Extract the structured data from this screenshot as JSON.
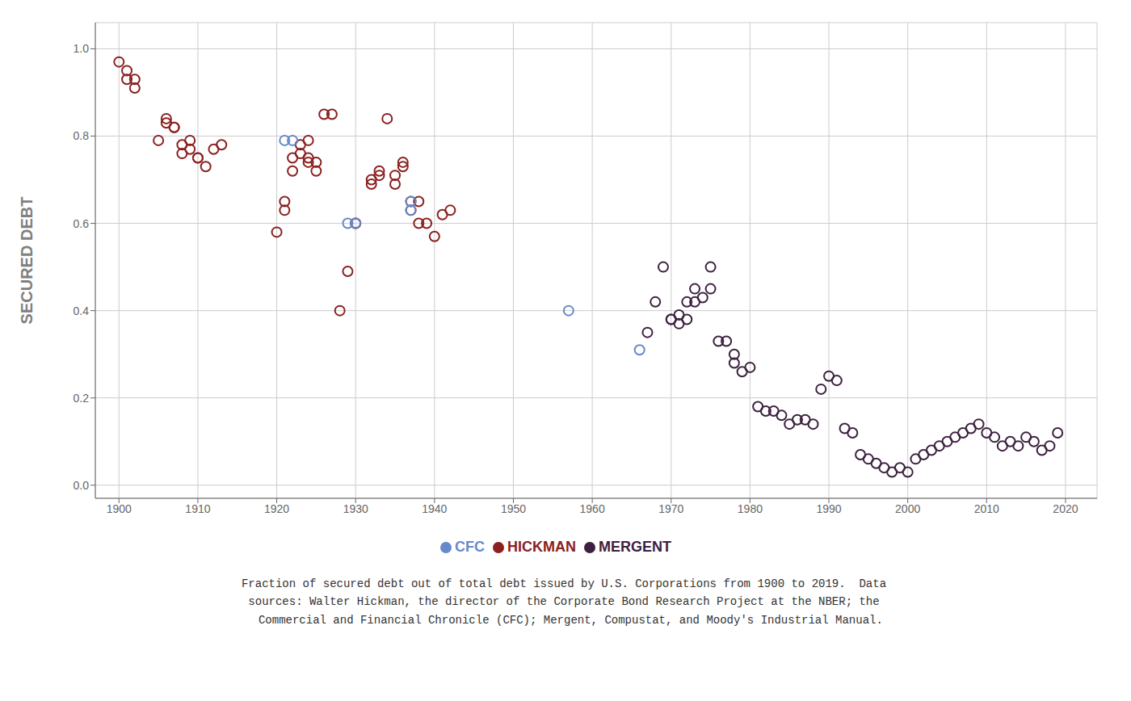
{
  "chart_data": {
    "type": "scatter",
    "ylabel": "SECURED DEBT",
    "annotations": [
      "Fraction of secured debt out of total debt issued by U.S. Corporations from 1900 to 2019.  Data\nsources: Walter Hickman, the director of the Corporate Bond Research Project at the NBER; the\n  Commercial and Financial Chronicle (CFC); Mergent, Compustat, and Moody's Industrial Manual."
    ],
    "xlim": [
      1897,
      2024
    ],
    "xticks": [
      1900,
      1910,
      1920,
      1930,
      1940,
      1950,
      1960,
      1970,
      1980,
      1990,
      2000,
      2010,
      2020
    ],
    "ylim": [
      -0.03,
      1.06
    ],
    "yticks": [
      {
        "value": 0,
        "label": "0.0"
      },
      0.2,
      0.4,
      0.6,
      0.8,
      {
        "value": 1,
        "label": "1.0"
      }
    ],
    "grid": true,
    "legend": "bottom",
    "marker": "circle",
    "series": [
      {
        "name": "HICKMAN",
        "color": "#8b2020",
        "x": [
          1900,
          1901,
          1901,
          1902,
          1902,
          1905,
          1906,
          1906,
          1907,
          1907,
          1908,
          1908,
          1909,
          1909,
          1910,
          1910,
          1911,
          1912,
          1913,
          1920,
          1921,
          1921,
          1922,
          1922,
          1923,
          1923,
          1924,
          1924,
          1924,
          1925,
          1925,
          1926,
          1927,
          1928,
          1929,
          1930,
          1930,
          1932,
          1932,
          1933,
          1933,
          1934,
          1935,
          1935,
          1936,
          1936,
          1937,
          1937,
          1938,
          1938,
          1939,
          1940,
          1941,
          1942
        ],
        "values": [
          0.97,
          0.93,
          0.95,
          0.93,
          0.91,
          0.79,
          0.83,
          0.84,
          0.82,
          0.82,
          0.78,
          0.76,
          0.79,
          0.77,
          0.75,
          0.75,
          0.73,
          0.77,
          0.78,
          0.58,
          0.63,
          0.65,
          0.72,
          0.75,
          0.76,
          0.78,
          0.79,
          0.75,
          0.74,
          0.72,
          0.74,
          0.85,
          0.85,
          0.4,
          0.49,
          0.6,
          0.6,
          0.69,
          0.7,
          0.71,
          0.72,
          0.84,
          0.69,
          0.71,
          0.73,
          0.74,
          0.63,
          0.65,
          0.6,
          0.65,
          0.6,
          0.57,
          0.62,
          0.63
        ]
      },
      {
        "name": "MERGENT",
        "color": "#3d2040",
        "x": [
          1967,
          1968,
          1969,
          1970,
          1970,
          1971,
          1971,
          1972,
          1972,
          1973,
          1973,
          1974,
          1975,
          1975,
          1976,
          1977,
          1978,
          1978,
          1979,
          1980,
          1981,
          1982,
          1983,
          1984,
          1985,
          1986,
          1987,
          1988,
          1989,
          1990,
          1991,
          1992,
          1993,
          1994,
          1995,
          1996,
          1997,
          1998,
          1999,
          2000,
          2001,
          2002,
          2003,
          2004,
          2005,
          2006,
          2007,
          2008,
          2009,
          2010,
          2011,
          2012,
          2013,
          2014,
          2015,
          2016,
          2017,
          2018,
          2019
        ],
        "values": [
          0.35,
          0.42,
          0.5,
          0.38,
          0.38,
          0.37,
          0.39,
          0.38,
          0.42,
          0.42,
          0.45,
          0.43,
          0.45,
          0.5,
          0.33,
          0.33,
          0.28,
          0.3,
          0.26,
          0.27,
          0.18,
          0.17,
          0.17,
          0.16,
          0.14,
          0.15,
          0.15,
          0.14,
          0.22,
          0.25,
          0.24,
          0.13,
          0.12,
          0.07,
          0.06,
          0.05,
          0.04,
          0.03,
          0.04,
          0.03,
          0.06,
          0.07,
          0.08,
          0.09,
          0.1,
          0.11,
          0.12,
          0.13,
          0.14,
          0.12,
          0.11,
          0.09,
          0.1,
          0.09,
          0.11,
          0.1,
          0.08,
          0.09,
          0.12
        ]
      },
      {
        "name": "CFC",
        "color": "#6688cc",
        "x": [
          1921,
          1922,
          1929,
          1930,
          1937,
          1937,
          1957,
          1966
        ],
        "values": [
          0.79,
          0.79,
          0.6,
          0.6,
          0.63,
          0.65,
          0.4,
          0.31
        ]
      }
    ]
  }
}
